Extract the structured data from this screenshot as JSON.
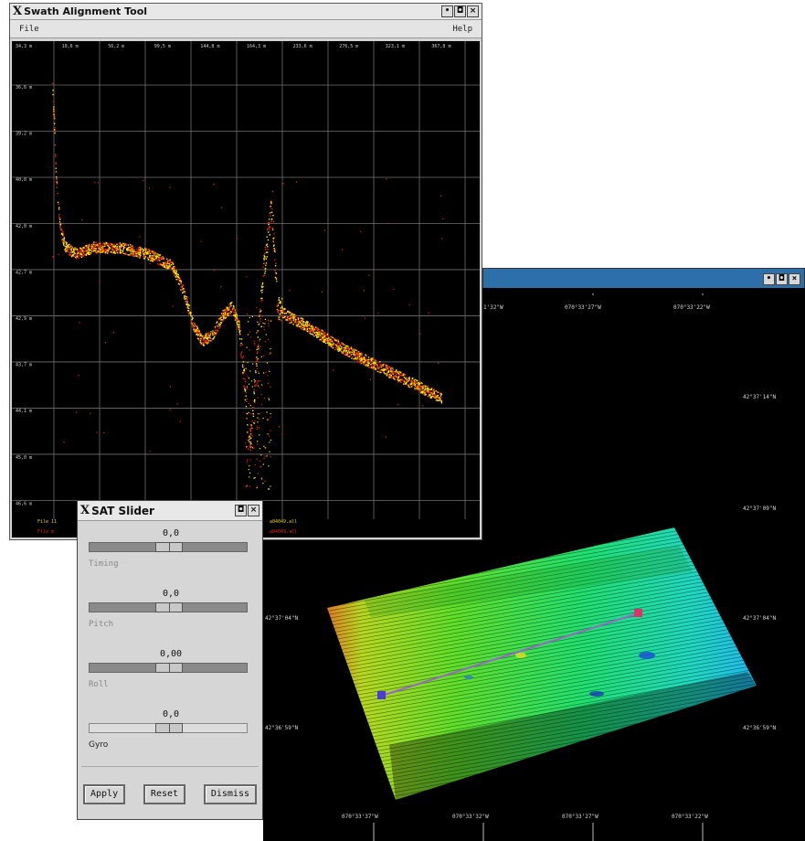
{
  "sat_window": {
    "title": "Swath Alignment Tool",
    "menu": {
      "file": "File",
      "help": "Help"
    },
    "x_ticks": [
      "34,3 m",
      "10,6 m",
      "56,2 m",
      "99,5 m",
      "144,8 m",
      "164,3 m",
      "233,6 m",
      "276,5 m",
      "323,1 m",
      "367,8 m"
    ],
    "y_ticks": [
      "36,6 m",
      "39,2 m",
      "40,0 m",
      "42,0 m",
      "42,7 m",
      "42,9 m",
      "43,7 m",
      "44,1 m",
      "45,0 m",
      "46,6 m"
    ],
    "status_1": "File 11",
    "status_2": "File m",
    "status_file": "a04049.all",
    "status_file2": "a04049.all",
    "colors": {
      "primary": "#ffee00",
      "secondary": "#ee2200"
    }
  },
  "map_window": {
    "top_labels": [
      "1'32\"W",
      "070°33'27\"W",
      "070°33'22\"W"
    ],
    "bottom_labels": [
      "070°33'37\"W",
      "070°33'32\"W",
      "070°33'27\"W",
      "070°33'22\"W"
    ],
    "right_labels": [
      "42°37'14\"N",
      "42°37'09\"N",
      "42°37'04\"N",
      "42°36'59\"N"
    ],
    "left_labels": [
      "42°37'04\"N",
      "42°36'59\"N"
    ]
  },
  "slider_window": {
    "title": "SAT Slider",
    "sliders": [
      {
        "value": "0,0",
        "label": "Timing"
      },
      {
        "value": "0,0",
        "label": "Pitch"
      },
      {
        "value": "0,00",
        "label": "Roll"
      },
      {
        "value": "0,0",
        "label": "Gyro"
      }
    ],
    "buttons": {
      "apply": "Apply",
      "reset": "Reset",
      "dismiss": "Dismiss"
    }
  }
}
